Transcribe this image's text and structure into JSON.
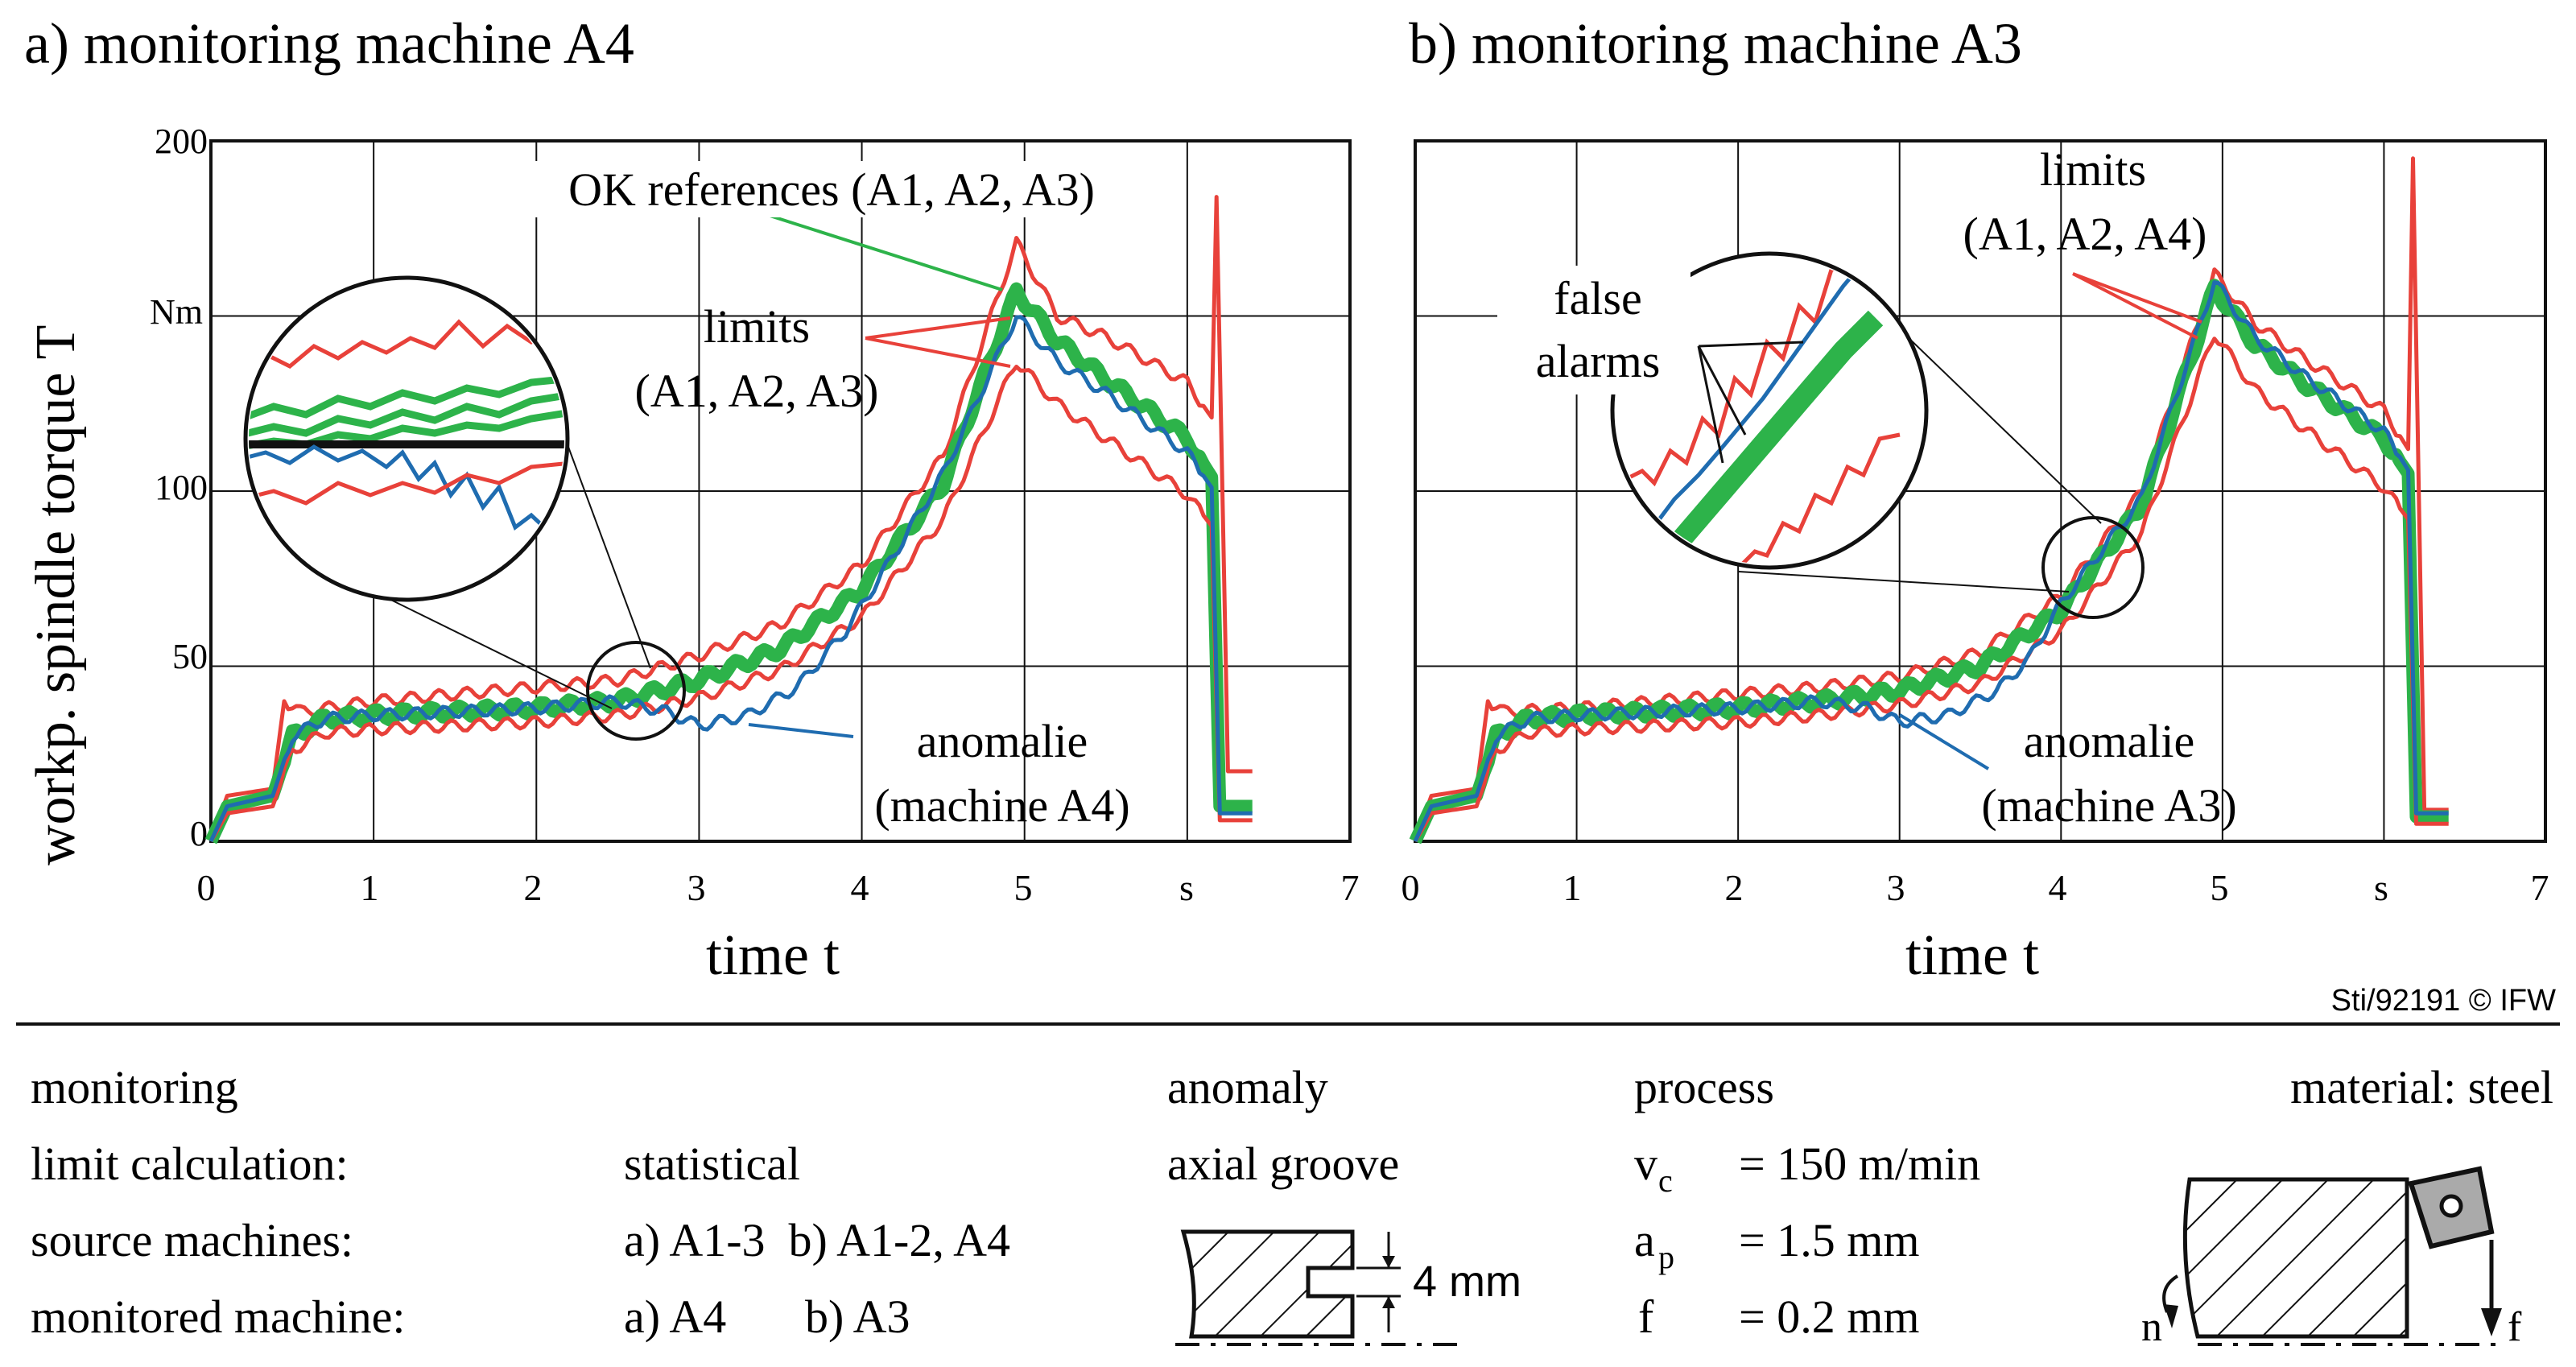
{
  "chart_data": [
    {
      "type": "line",
      "title": "a) monitoring machine A4",
      "xlabel": "time t",
      "ylabel": "workp. spindle torque T",
      "yunit": "Nm",
      "xunit": "s",
      "xlim": [
        0,
        7
      ],
      "ylim": [
        0,
        200
      ],
      "xticks": [
        "0",
        "1",
        "2",
        "3",
        "4",
        "5",
        "s",
        "7"
      ],
      "yticks": [
        "0",
        "50",
        "100",
        "Nm",
        "200"
      ],
      "grid": true,
      "annotations": {
        "references": "OK references (A1, A2, A3)",
        "limits_line1": "limits",
        "limits_line2": "(A1, A2, A3)",
        "anomaly_line1": "anomalie",
        "anomaly_line2": "(machine A4)"
      },
      "series": [
        {
          "name": "upper limit",
          "color": "#e8413a",
          "x": [
            0,
            0.1,
            0.38,
            0.45,
            0.55,
            1,
            2,
            2.5,
            3,
            3.5,
            4,
            4.5,
            4.95,
            5.2,
            5.5,
            6,
            6.15,
            6.18,
            6.25,
            6.4
          ],
          "y": [
            0,
            13,
            15,
            40,
            37,
            40,
            44,
            46,
            53,
            62,
            79,
            110,
            171,
            150,
            144,
            131,
            121,
            184,
            20,
            20
          ]
        },
        {
          "name": "OK references",
          "color": "#2db34a",
          "x": [
            0,
            0.1,
            0.38,
            0.5,
            0.7,
            1,
            2,
            2.5,
            3,
            3.5,
            4,
            4.5,
            4.95,
            5.2,
            5.5,
            6,
            6.15,
            6.2,
            6.4
          ],
          "y": [
            0,
            10,
            13,
            30,
            35,
            36,
            38,
            40,
            46,
            55,
            72,
            102,
            157,
            143,
            132,
            115,
            104,
            10,
            10
          ]
        },
        {
          "name": "lower limit",
          "color": "#e8413a",
          "x": [
            0,
            0.1,
            0.38,
            0.5,
            0.7,
            1,
            2,
            2.5,
            3,
            3.5,
            4,
            4.5,
            4.95,
            5.2,
            5.5,
            6,
            6.15,
            6.2,
            6.4
          ],
          "y": [
            0,
            8,
            10,
            26,
            31,
            32,
            34,
            36,
            41,
            49,
            64,
            92,
            137,
            125,
            115,
            99,
            90,
            6,
            6
          ]
        },
        {
          "name": "anomalie (machine A4)",
          "color": "#1f6cb0",
          "x": [
            0,
            0.1,
            0.38,
            0.5,
            0.7,
            1,
            2,
            2.5,
            2.8,
            3,
            3.3,
            3.6,
            3.9,
            4.2,
            4.5,
            4.95,
            5.2,
            5.5,
            6,
            6.15,
            6.2,
            6.4
          ],
          "y": [
            0,
            10,
            13,
            30,
            35,
            36,
            38,
            40,
            37,
            33,
            36,
            44,
            60,
            82,
            105,
            150,
            137,
            128,
            111,
            101,
            8,
            8
          ]
        }
      ]
    },
    {
      "type": "line",
      "title": "b) monitoring machine A3",
      "xlabel": "time t",
      "ylabel": "workp. spindle torque T",
      "yunit": "Nm",
      "xunit": "s",
      "xlim": [
        0,
        7
      ],
      "ylim": [
        0,
        200
      ],
      "xticks": [
        "0",
        "1",
        "2",
        "3",
        "4",
        "5",
        "s",
        "7"
      ],
      "yticks": [
        "0",
        "50",
        "100",
        "Nm",
        "200"
      ],
      "grid": true,
      "annotations": {
        "false_alarms_line1": "false",
        "false_alarms_line2": "alarms",
        "limits_line1": "limits",
        "limits_line2": "(A1, A2, A4)",
        "anomaly_line1": "anomalie",
        "anomaly_line2": "(machine A3)"
      },
      "series": [
        {
          "name": "upper limit",
          "color": "#e8413a",
          "x": [
            0,
            0.1,
            0.38,
            0.45,
            0.55,
            1,
            2,
            2.5,
            3,
            3.5,
            4,
            4.5,
            4.95,
            5.2,
            5.5,
            6,
            6.15,
            6.18,
            6.25,
            6.4
          ],
          "y": [
            0,
            13,
            15,
            40,
            37,
            38,
            42,
            44,
            47,
            54,
            70,
            100,
            162,
            148,
            138,
            123,
            112,
            195,
            9,
            9
          ]
        },
        {
          "name": "OK references",
          "color": "#2db34a",
          "x": [
            0,
            0.1,
            0.38,
            0.5,
            0.7,
            1,
            2,
            2.5,
            3,
            3.5,
            4,
            4.5,
            4.95,
            5.2,
            5.5,
            6,
            6.15,
            6.2,
            6.4
          ],
          "y": [
            0,
            10,
            13,
            30,
            35,
            36,
            38,
            40,
            43,
            50,
            66,
            96,
            158,
            142,
            131,
            115,
            105,
            7,
            7
          ]
        },
        {
          "name": "lower limit",
          "color": "#e8413a",
          "x": [
            0,
            0.1,
            0.38,
            0.5,
            0.7,
            1,
            2,
            2.5,
            3,
            3.5,
            4,
            4.5,
            4.95,
            5.2,
            5.5,
            6,
            6.15,
            6.2,
            6.4
          ],
          "y": [
            0,
            8,
            10,
            26,
            31,
            32,
            34,
            36,
            39,
            45,
            60,
            88,
            145,
            129,
            118,
            101,
            92,
            5,
            5
          ]
        },
        {
          "name": "anomalie (machine A3)",
          "color": "#1f6cb0",
          "x": [
            0,
            0.1,
            0.38,
            0.5,
            0.7,
            1,
            2,
            2.5,
            2.8,
            3,
            3.3,
            3.6,
            3.8,
            4,
            4.5,
            4.95,
            5.2,
            5.5,
            6,
            6.15,
            6.2,
            6.4
          ],
          "y": [
            0,
            10,
            13,
            30,
            35,
            36,
            38,
            40,
            38,
            34,
            36,
            43,
            52,
            68,
            98,
            160,
            144,
            133,
            117,
            106,
            8,
            8
          ]
        }
      ]
    }
  ],
  "credit": "Sti/92191 © IFW",
  "info": {
    "monitoring": "monitoring",
    "limit_calc_label": "limit calculation:",
    "limit_calc_value": "statistical",
    "source_label": "source machines:",
    "source_value": "a) A1-3  b) A1-2, A4",
    "monitored_label": "monitored machine:",
    "monitored_a": "a) A4",
    "monitored_b": "b) A3",
    "anomaly_title": "anomaly",
    "anomaly_value": "axial groove",
    "groove_depth": "4 mm",
    "process_title": "process",
    "vc_sym": "v",
    "vc_sub": "c",
    "vc_val": "= 150 m/min",
    "ap_sym": "a",
    "ap_sub": "p",
    "ap_val": "= 1.5 mm",
    "f_sym": "f",
    "f_val": "= 0.2 mm",
    "material": "material: steel",
    "n_label": "n",
    "f_label": "f"
  }
}
